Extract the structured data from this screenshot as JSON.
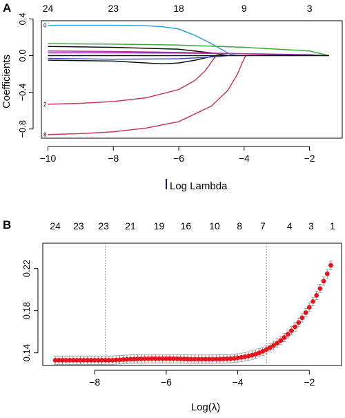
{
  "panel_a_label": "A",
  "panel_b_label": "B",
  "chart_data": [
    {
      "type": "line",
      "panel": "A",
      "xlabel": "Log Lambda",
      "ylabel": "Coefficients",
      "xlim": [
        -10.2,
        -1.0
      ],
      "ylim": [
        -0.9,
        0.38
      ],
      "xticks": [
        -10,
        -8,
        -6,
        -4,
        -2
      ],
      "yticks": [
        -0.8,
        -0.4,
        0.0,
        0.4
      ],
      "top_axis": {
        "positions": [
          -10,
          -8,
          -6,
          -4,
          -2
        ],
        "labels": [
          "24",
          "23",
          "18",
          "9",
          "3"
        ]
      },
      "line_end_labels": [
        {
          "text": "0",
          "y": 0.33
        },
        {
          "text": "2",
          "y": -0.53
        },
        {
          "text": "8",
          "y": -0.86
        }
      ],
      "grid": false,
      "series": [
        {
          "color": "#29a3e0",
          "x": [
            -10.0,
            -8.0,
            -7.0,
            -6.5,
            -6.0,
            -5.5,
            -5.0,
            -4.6,
            -4.4,
            -4.2
          ],
          "y": [
            0.33,
            0.33,
            0.325,
            0.315,
            0.29,
            0.22,
            0.13,
            0.05,
            0.01,
            0.0
          ]
        },
        {
          "color": "#c83a57",
          "x": [
            -10.0,
            -9.0,
            -8.0,
            -7.0,
            -6.0,
            -5.5,
            -5.2,
            -5.0,
            -4.9,
            -4.8
          ],
          "y": [
            -0.53,
            -0.52,
            -0.5,
            -0.46,
            -0.37,
            -0.27,
            -0.17,
            -0.07,
            -0.02,
            0.0
          ]
        },
        {
          "color": "#c83a57",
          "x": [
            -10.0,
            -9.0,
            -8.0,
            -7.0,
            -6.0,
            -5.0,
            -4.5,
            -4.2,
            -4.05,
            -3.95
          ],
          "y": [
            -0.86,
            -0.85,
            -0.83,
            -0.79,
            -0.72,
            -0.55,
            -0.38,
            -0.2,
            -0.07,
            0.0
          ]
        },
        {
          "color": "#111111",
          "x": [
            -10.0,
            -8.0,
            -7.0,
            -6.5,
            -6.0,
            -5.5,
            -5.0,
            -4.8
          ],
          "y": [
            -0.05,
            -0.06,
            -0.08,
            -0.09,
            -0.08,
            -0.05,
            -0.01,
            0.0
          ]
        },
        {
          "color": "#3aaa3a",
          "x": [
            -10.0,
            -8.0,
            -6.0,
            -4.0,
            -2.0,
            -1.4
          ],
          "y": [
            0.13,
            0.125,
            0.115,
            0.09,
            0.05,
            0.0
          ]
        },
        {
          "color": "#111111",
          "x": [
            -10.0,
            -8.0,
            -6.0,
            -5.0,
            -4.5
          ],
          "y": [
            0.1,
            0.09,
            0.07,
            0.03,
            0.0
          ]
        },
        {
          "color": "#7a2fa8",
          "x": [
            -10.0,
            -8.0,
            -6.0,
            -4.0,
            -2.0,
            -1.5
          ],
          "y": [
            0.03,
            0.03,
            0.028,
            0.02,
            0.01,
            0.0
          ]
        },
        {
          "color": "#c2329f",
          "x": [
            -10.0,
            -8.0,
            -6.0,
            -4.0,
            -2.5
          ],
          "y": [
            0.05,
            0.045,
            0.035,
            0.02,
            0.0
          ]
        },
        {
          "color": "#3f51c9",
          "x": [
            -10.0,
            -8.0,
            -6.0,
            -5.0,
            -4.5
          ],
          "y": [
            -0.03,
            -0.04,
            -0.035,
            -0.015,
            0.0
          ]
        },
        {
          "color": "#111111",
          "x": [
            -10.0,
            -8.0,
            -6.0,
            -4.0,
            -2.0,
            -1.4
          ],
          "y": [
            0.0,
            0.0,
            0.0,
            0.0,
            0.0,
            0.0
          ]
        }
      ]
    },
    {
      "type": "scatter",
      "panel": "B",
      "xlabel": "Log(λ)",
      "ylabel": "",
      "xlim": [
        -9.45,
        -1.1
      ],
      "ylim": [
        0.128,
        0.244
      ],
      "xticks": [
        -8,
        -6,
        -4,
        -2
      ],
      "yticks": [
        0.14,
        0.18,
        0.22
      ],
      "top_axis": {
        "positions": [
          -9.1,
          -8.45,
          -7.75,
          -7.0,
          -6.2,
          -5.45,
          -4.65,
          -3.95,
          -3.3,
          -2.55,
          -1.95,
          -1.35
        ],
        "labels": [
          "24",
          "23",
          "23",
          "21",
          "19",
          "16",
          "10",
          "8",
          "7",
          "4",
          "3",
          "1"
        ]
      },
      "vlines": [
        -7.7,
        -3.2
      ],
      "grid": false,
      "point_color": "#e8141b",
      "errorbar_color": "#9e9e9e",
      "x": [
        -9.1,
        -9.0,
        -8.9,
        -8.8,
        -8.7,
        -8.6,
        -8.5,
        -8.4,
        -8.3,
        -8.2,
        -8.1,
        -8.0,
        -7.9,
        -7.8,
        -7.7,
        -7.6,
        -7.5,
        -7.4,
        -7.3,
        -7.2,
        -7.1,
        -7.0,
        -6.9,
        -6.8,
        -6.7,
        -6.6,
        -6.5,
        -6.4,
        -6.3,
        -6.2,
        -6.1,
        -6.0,
        -5.9,
        -5.8,
        -5.7,
        -5.6,
        -5.5,
        -5.4,
        -5.3,
        -5.2,
        -5.1,
        -5.0,
        -4.9,
        -4.8,
        -4.7,
        -4.6,
        -4.5,
        -4.4,
        -4.3,
        -4.2,
        -4.1,
        -4.0,
        -3.9,
        -3.8,
        -3.7,
        -3.6,
        -3.5,
        -3.4,
        -3.3,
        -3.2,
        -3.1,
        -3.0,
        -2.9,
        -2.8,
        -2.7,
        -2.6,
        -2.5,
        -2.4,
        -2.3,
        -2.2,
        -2.1,
        -2.0,
        -1.9,
        -1.8,
        -1.7,
        -1.6,
        -1.5,
        -1.4
      ],
      "y": [
        0.133,
        0.133,
        0.133,
        0.133,
        0.133,
        0.133,
        0.133,
        0.133,
        0.133,
        0.133,
        0.133,
        0.133,
        0.133,
        0.133,
        0.133,
        0.133,
        0.133,
        0.1332,
        0.1334,
        0.1336,
        0.1338,
        0.134,
        0.1341,
        0.1342,
        0.1343,
        0.1344,
        0.1344,
        0.1345,
        0.1345,
        0.1345,
        0.1345,
        0.1345,
        0.1345,
        0.1344,
        0.1344,
        0.1343,
        0.1342,
        0.1341,
        0.134,
        0.134,
        0.134,
        0.134,
        0.134,
        0.134,
        0.134,
        0.134,
        0.1341,
        0.1342,
        0.1343,
        0.1345,
        0.1348,
        0.1352,
        0.1357,
        0.1363,
        0.137,
        0.1378,
        0.1388,
        0.14,
        0.1415,
        0.1432,
        0.145,
        0.147,
        0.1492,
        0.1517,
        0.1545,
        0.1576,
        0.161,
        0.1647,
        0.1688,
        0.1733,
        0.1781,
        0.1832,
        0.1887,
        0.1945,
        0.201,
        0.208,
        0.215,
        0.223
      ],
      "error": 0.004
    }
  ]
}
